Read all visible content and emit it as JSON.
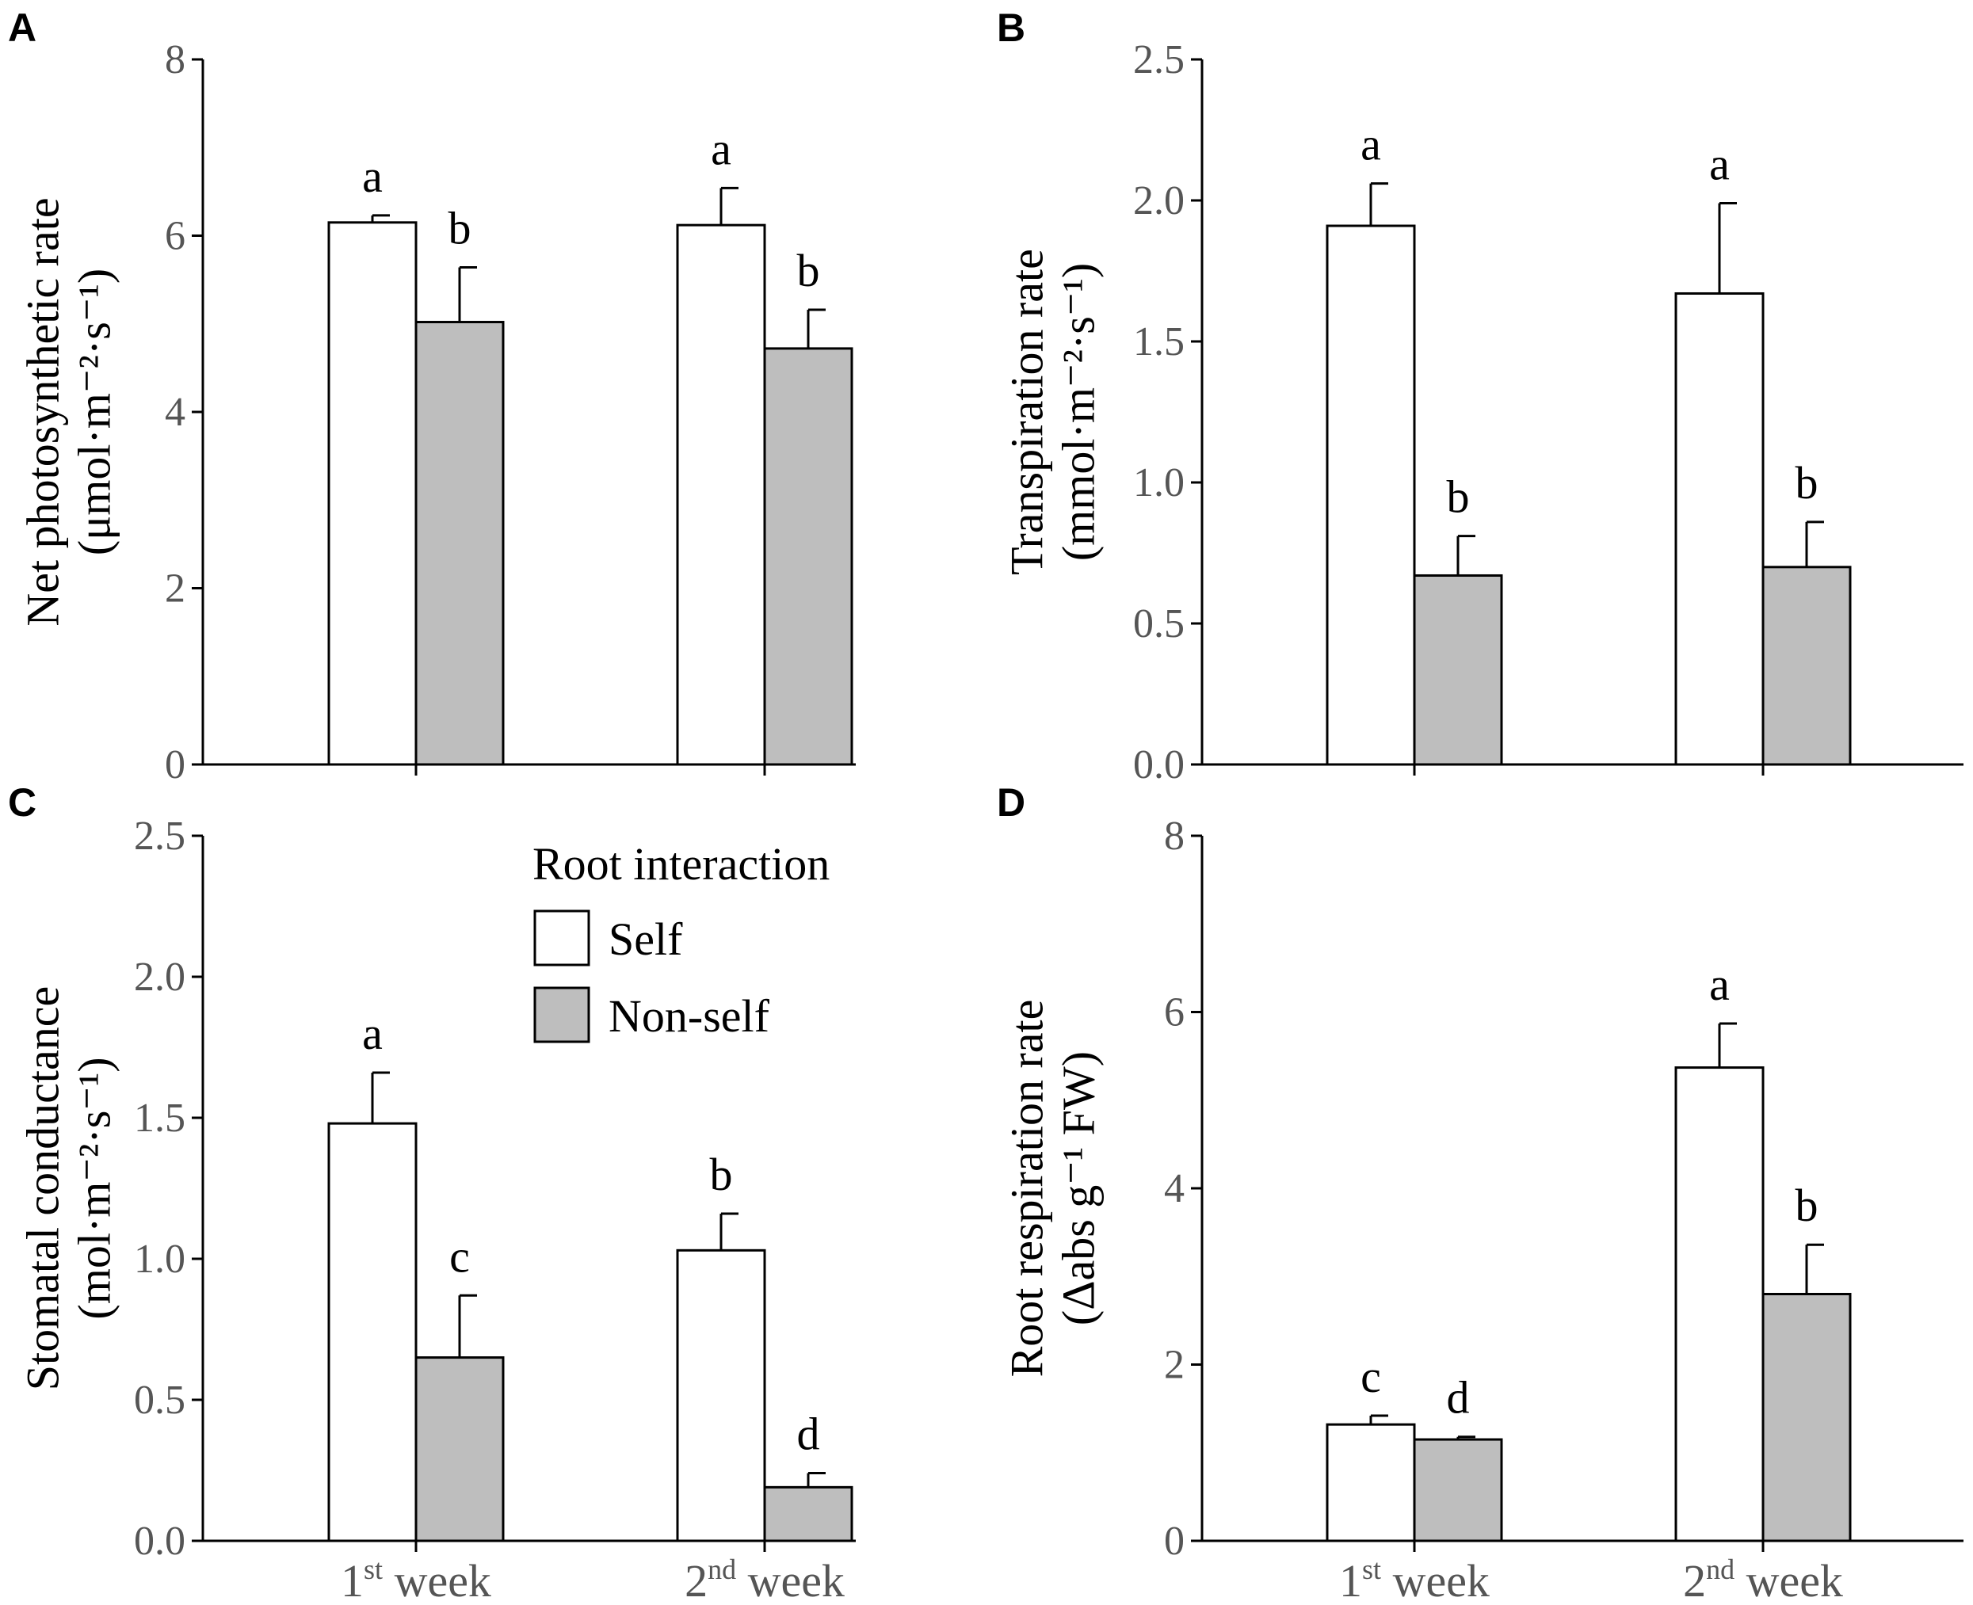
{
  "colors": {
    "self": "#ffffff",
    "nonself": "#bebebe",
    "axis": "#000000",
    "ticktext": "#555555"
  },
  "legend": {
    "title": "Root interaction",
    "entries": [
      "Self",
      "Non-self"
    ]
  },
  "chart_data": [
    {
      "panel": "A",
      "type": "bar",
      "ylabel_line1": "Net photosynthetic rate",
      "ylabel_line2": "(μmol·m⁻²·s⁻¹)",
      "ylim": [
        0,
        8
      ],
      "yticks": [
        "0",
        "2",
        "4",
        "6",
        "8"
      ],
      "categories": [
        {
          "base": "1",
          "sup": "st",
          "rest": " week"
        },
        {
          "base": "2",
          "sup": "nd",
          "rest": " week"
        }
      ],
      "series": [
        {
          "name": "Self",
          "values": [
            6.15,
            6.12
          ],
          "errors": [
            0.08,
            0.42
          ],
          "letters": [
            "a",
            "a"
          ]
        },
        {
          "name": "Non-self",
          "values": [
            5.02,
            4.72
          ],
          "errors": [
            0.62,
            0.44
          ],
          "letters": [
            "b",
            "b"
          ]
        }
      ]
    },
    {
      "panel": "B",
      "type": "bar",
      "ylabel_line1": "Transpiration rate",
      "ylabel_line2": "(mmol·m⁻²·s⁻¹)",
      "ylim": [
        0,
        2.5
      ],
      "yticks": [
        "0.0",
        "0.5",
        "1.0",
        "1.5",
        "2.0",
        "2.5"
      ],
      "categories": [
        {
          "base": "1",
          "sup": "st",
          "rest": " week"
        },
        {
          "base": "2",
          "sup": "nd",
          "rest": " week"
        }
      ],
      "series": [
        {
          "name": "Self",
          "values": [
            1.91,
            1.67
          ],
          "errors": [
            0.15,
            0.32
          ],
          "letters": [
            "a",
            "a"
          ]
        },
        {
          "name": "Non-self",
          "values": [
            0.67,
            0.7
          ],
          "errors": [
            0.14,
            0.16
          ],
          "letters": [
            "b",
            "b"
          ]
        }
      ]
    },
    {
      "panel": "C",
      "type": "bar",
      "ylabel_line1": "Stomatal conductance",
      "ylabel_line2": "(mol·m⁻²·s⁻¹)",
      "ylim": [
        0,
        2.5
      ],
      "yticks": [
        "0.0",
        "0.5",
        "1.0",
        "1.5",
        "2.0",
        "2.5"
      ],
      "categories": [
        {
          "base": "1",
          "sup": "st",
          "rest": " week"
        },
        {
          "base": "2",
          "sup": "nd",
          "rest": " week"
        }
      ],
      "series": [
        {
          "name": "Self",
          "values": [
            1.48,
            1.03
          ],
          "errors": [
            0.18,
            0.13
          ],
          "letters": [
            "a",
            "b"
          ]
        },
        {
          "name": "Non-self",
          "values": [
            0.65,
            0.19
          ],
          "errors": [
            0.22,
            0.05
          ],
          "letters": [
            "c",
            "d"
          ]
        }
      ]
    },
    {
      "panel": "D",
      "type": "bar",
      "ylabel_line1": "Root respiration rate",
      "ylabel_line2": "(Δabs g⁻¹ FW)",
      "ylim": [
        0,
        8
      ],
      "yticks": [
        "0",
        "2",
        "4",
        "6",
        "8"
      ],
      "categories": [
        {
          "base": "1",
          "sup": "st",
          "rest": " week"
        },
        {
          "base": "2",
          "sup": "nd",
          "rest": " week"
        }
      ],
      "series": [
        {
          "name": "Self",
          "values": [
            1.32,
            5.37
          ],
          "errors": [
            0.1,
            0.5
          ],
          "letters": [
            "c",
            "a"
          ]
        },
        {
          "name": "Non-self",
          "values": [
            1.15,
            2.8
          ],
          "errors": [
            0.03,
            0.56
          ],
          "letters": [
            "d",
            "b"
          ]
        }
      ]
    }
  ]
}
